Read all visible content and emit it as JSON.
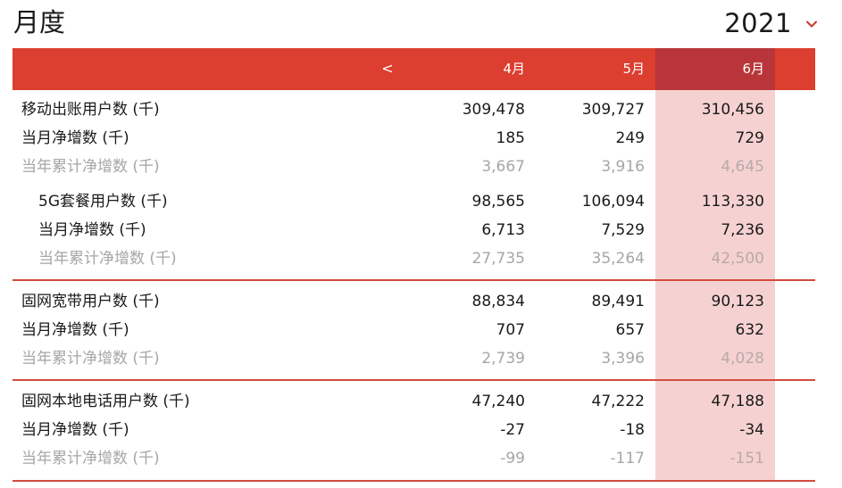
{
  "page": {
    "title": "月度",
    "year": "2021"
  },
  "header": {
    "prev_label": "<",
    "months": [
      "4月",
      "5月",
      "6月"
    ]
  },
  "rows": [
    {
      "label": "移动出账用户数 (千)",
      "values": [
        "309,478",
        "309,727",
        "310,456"
      ]
    },
    {
      "label": "当月净增数 (千)",
      "values": [
        "185",
        "249",
        "729"
      ]
    },
    {
      "label": "当年累计净增数 (千)",
      "values": [
        "3,667",
        "3,916",
        "4,645"
      ]
    },
    {
      "label": "5G套餐用户数 (千)",
      "values": [
        "98,565",
        "106,094",
        "113,330"
      ]
    },
    {
      "label": "当月净增数 (千)",
      "values": [
        "6,713",
        "7,529",
        "7,236"
      ]
    },
    {
      "label": "当年累计净增数 (千)",
      "values": [
        "27,735",
        "35,264",
        "42,500"
      ]
    },
    {
      "label": "固网宽带用户数 (千)",
      "values": [
        "88,834",
        "89,491",
        "90,123"
      ]
    },
    {
      "label": "当月净增数 (千)",
      "values": [
        "707",
        "657",
        "632"
      ]
    },
    {
      "label": "当年累计净增数 (千)",
      "values": [
        "2,739",
        "3,396",
        "4,028"
      ]
    },
    {
      "label": "固网本地电话用户数 (千)",
      "values": [
        "47,240",
        "47,222",
        "47,188"
      ]
    },
    {
      "label": "当月净增数 (千)",
      "values": [
        "-27",
        "-18",
        "-34"
      ]
    },
    {
      "label": "当年累计净增数 (千)",
      "values": [
        "-99",
        "-117",
        "-151"
      ]
    }
  ],
  "selected_month_index": 2,
  "colors": {
    "header": "#dc3e2f",
    "header_active": "#b9353a",
    "active_column": "#f5d2d1",
    "divider": "#d34c3e",
    "muted_text": "#a6a6a6"
  },
  "icons": {
    "year_dropdown": "chevron-down-icon"
  }
}
